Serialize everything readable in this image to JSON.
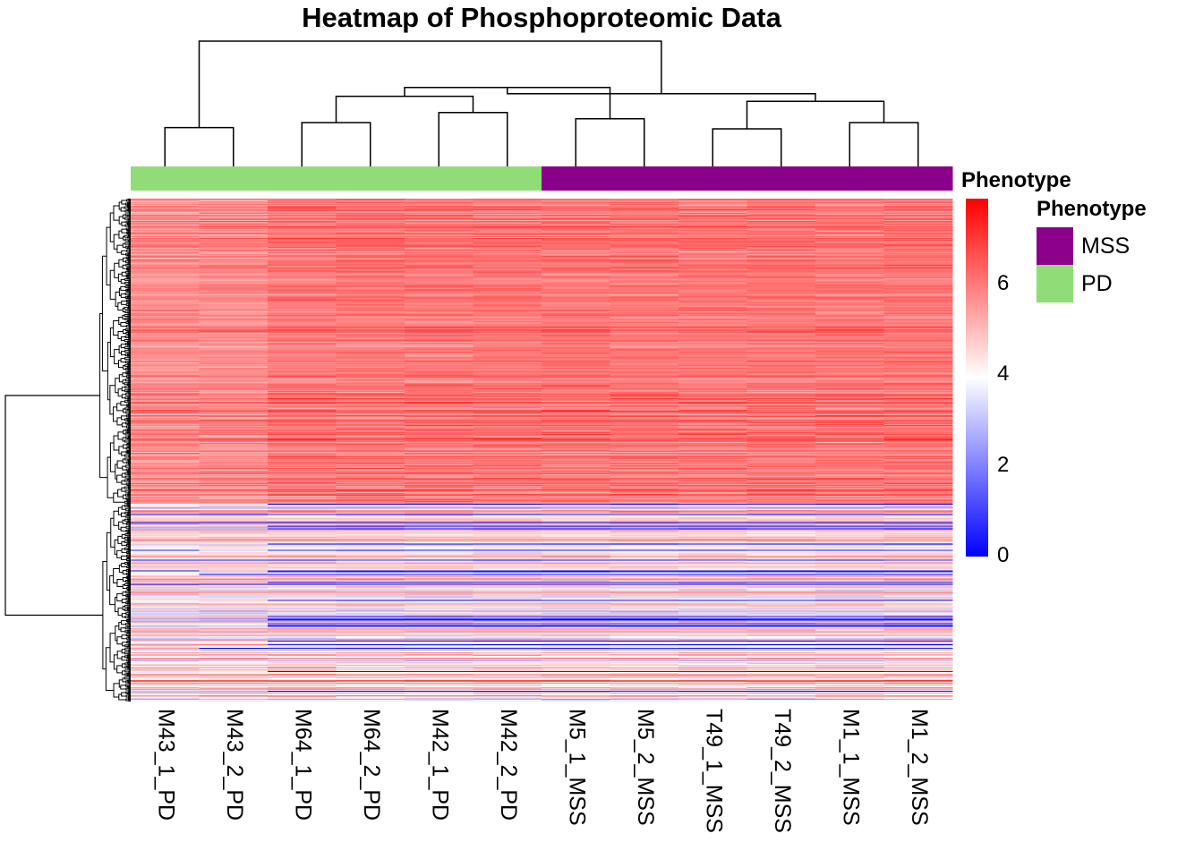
{
  "chart_data": {
    "type": "heatmap",
    "title": "Heatmap of Phosphoproteomic Data",
    "columns": [
      "M43_1_PD",
      "M43_2_PD",
      "M64_1_PD",
      "M64_2_PD",
      "M42_1_PD",
      "M42_2_PD",
      "M5_1_MSS",
      "M5_2_MSS",
      "T49_1_MSS",
      "T49_2_MSS",
      "M1_1_MSS",
      "M1_2_MSS"
    ],
    "column_annotation": {
      "label": "Phenotype",
      "values": [
        "PD",
        "PD",
        "PD",
        "PD",
        "PD",
        "PD",
        "MSS",
        "MSS",
        "MSS",
        "MSS",
        "MSS",
        "MSS"
      ]
    },
    "legend": {
      "title": "Phenotype",
      "entries": [
        {
          "label": "MSS",
          "color": "#8B008B"
        },
        {
          "label": "PD",
          "color": "#90DD77"
        }
      ]
    },
    "color_scale": {
      "min": 0,
      "max": 7.9,
      "midpoint": 3.95,
      "low_color": "#0000FF",
      "mid_color": "#FFFFFF",
      "high_color": "#FF0000",
      "ticks": [
        0,
        2,
        4,
        6
      ]
    },
    "column_dendrogram": {
      "leaf_order": [
        "M43_1_PD",
        "M43_2_PD",
        "M64_1_PD",
        "M64_2_PD",
        "M42_1_PD",
        "M42_2_PD",
        "M5_1_MSS",
        "M5_2_MSS",
        "T49_1_MSS",
        "T49_2_MSS",
        "M1_1_MSS",
        "M1_2_MSS"
      ],
      "merges": [
        [
          0,
          1,
          0.31
        ],
        [
          2,
          3,
          0.35
        ],
        [
          4,
          5,
          0.43
        ],
        [
          6,
          7,
          0.38
        ],
        [
          8,
          9,
          0.3
        ],
        [
          10,
          11,
          0.35
        ],
        [
          13,
          14,
          0.56
        ],
        [
          16,
          17,
          0.52
        ],
        [
          18,
          15,
          0.63
        ],
        [
          19,
          20,
          0.58
        ],
        [
          12,
          21,
          1.0
        ]
      ]
    },
    "row_count": 560,
    "row_clusters": [
      {
        "rows": 340,
        "mean": 5.8,
        "spread": 0.6
      },
      {
        "rows": 220,
        "mean": 4.3,
        "spread": 1.6
      }
    ]
  }
}
